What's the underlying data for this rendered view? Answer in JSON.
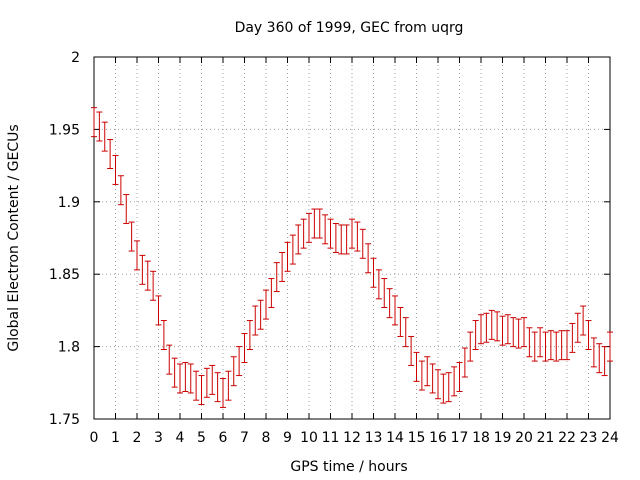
{
  "chart_data": {
    "type": "scatter",
    "title": "Day 360 of 1999, GEC from uqrg",
    "xlabel": "GPS time / hours",
    "ylabel": "Global Electron Content / GECUs",
    "xlim": [
      0,
      24
    ],
    "ylim": [
      1.75,
      2.0
    ],
    "grid": true,
    "x_ticks": [
      0,
      1,
      2,
      3,
      4,
      5,
      6,
      7,
      8,
      9,
      10,
      11,
      12,
      13,
      14,
      15,
      16,
      17,
      18,
      19,
      20,
      21,
      22,
      23,
      24
    ],
    "x_tick_labels": [
      "0",
      "1",
      "2",
      "3",
      "4",
      "5",
      "6",
      "7",
      "8",
      "9",
      "10",
      "11",
      "12",
      "13",
      "14",
      "15",
      "16",
      "17",
      "18",
      "19",
      "20",
      "21",
      "22",
      "23",
      "24"
    ],
    "y_ticks": [
      1.75,
      1.8,
      1.85,
      1.9,
      1.95,
      2.0
    ],
    "y_tick_labels": [
      "1.75",
      "1.8",
      "1.85",
      "1.9",
      "1.95",
      "2"
    ],
    "series": [
      {
        "name": "GEC",
        "color": "#cc0000",
        "error": 0.01,
        "x": [
          0.0,
          0.25,
          0.5,
          0.75,
          1.0,
          1.25,
          1.5,
          1.75,
          2.0,
          2.25,
          2.5,
          2.75,
          3.0,
          3.25,
          3.5,
          3.75,
          4.0,
          4.25,
          4.5,
          4.75,
          5.0,
          5.25,
          5.5,
          5.75,
          6.0,
          6.25,
          6.5,
          6.75,
          7.0,
          7.25,
          7.5,
          7.75,
          8.0,
          8.25,
          8.5,
          8.75,
          9.0,
          9.25,
          9.5,
          9.75,
          10.0,
          10.25,
          10.5,
          10.75,
          11.0,
          11.25,
          11.5,
          11.75,
          12.0,
          12.25,
          12.5,
          12.75,
          13.0,
          13.25,
          13.5,
          13.75,
          14.0,
          14.25,
          14.5,
          14.75,
          15.0,
          15.25,
          15.5,
          15.75,
          16.0,
          16.25,
          16.5,
          16.75,
          17.0,
          17.25,
          17.5,
          17.75,
          18.0,
          18.25,
          18.5,
          18.75,
          19.0,
          19.25,
          19.5,
          19.75,
          20.0,
          20.25,
          20.5,
          20.75,
          21.0,
          21.25,
          21.5,
          21.75,
          22.0,
          22.25,
          22.5,
          22.75,
          23.0,
          23.25,
          23.5,
          23.75,
          24.0
        ],
        "values": [
          1.955,
          1.952,
          1.945,
          1.933,
          1.922,
          1.908,
          1.895,
          1.876,
          1.863,
          1.853,
          1.849,
          1.842,
          1.825,
          1.808,
          1.791,
          1.782,
          1.778,
          1.779,
          1.778,
          1.773,
          1.77,
          1.775,
          1.777,
          1.772,
          1.768,
          1.773,
          1.783,
          1.79,
          1.799,
          1.808,
          1.818,
          1.822,
          1.829,
          1.837,
          1.848,
          1.855,
          1.862,
          1.867,
          1.874,
          1.878,
          1.882,
          1.885,
          1.885,
          1.881,
          1.878,
          1.875,
          1.874,
          1.874,
          1.878,
          1.876,
          1.871,
          1.861,
          1.851,
          1.843,
          1.837,
          1.83,
          1.825,
          1.817,
          1.81,
          1.797,
          1.786,
          1.78,
          1.783,
          1.778,
          1.774,
          1.771,
          1.772,
          1.776,
          1.779,
          1.789,
          1.8,
          1.808,
          1.812,
          1.813,
          1.815,
          1.814,
          1.811,
          1.812,
          1.81,
          1.809,
          1.81,
          1.803,
          1.8,
          1.803,
          1.8,
          1.801,
          1.8,
          1.801,
          1.801,
          1.806,
          1.813,
          1.818,
          1.808,
          1.796,
          1.792,
          1.79,
          1.8
        ]
      }
    ]
  }
}
